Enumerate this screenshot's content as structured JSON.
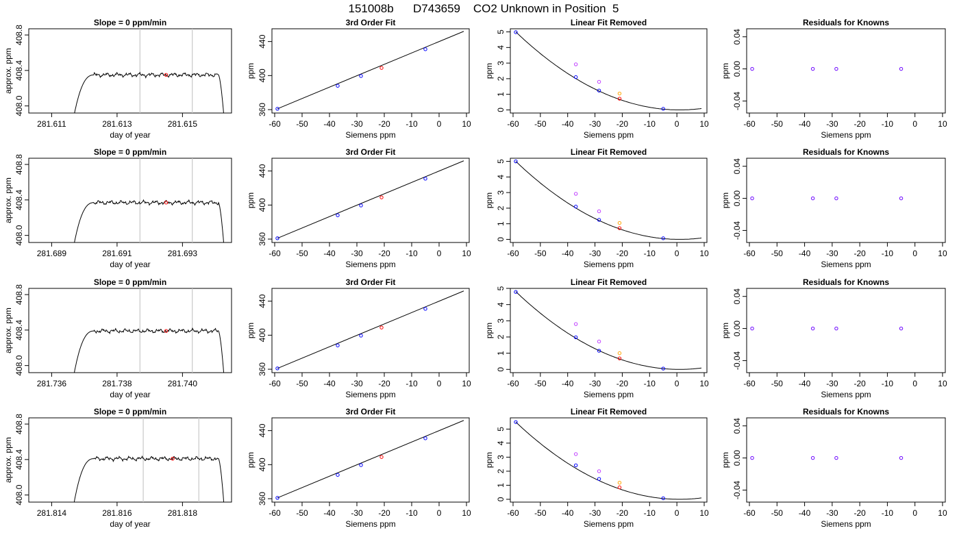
{
  "main_title": "151008b      D743659    CO2 Unknown in Position  5",
  "chart_data": [
    {
      "type": "line",
      "title": "Slope =  0  ppm/min",
      "xlabel": "day of year",
      "ylabel": "approx. ppm",
      "xlim": [
        281.6103,
        281.6165
      ],
      "ylim": [
        407.92,
        408.87
      ],
      "xticks": [
        "281.611",
        "281.613",
        "281.615"
      ],
      "xtick_values": [
        281.611,
        281.613,
        281.615
      ],
      "yticks": [
        "408.0",
        "408.4",
        "408.8"
      ],
      "ytick_values": [
        408.0,
        408.4,
        408.8
      ],
      "vlines": [
        281.6137,
        281.6153
      ],
      "baseline": 408.35,
      "onset": [
        281.6116,
        281.6123
      ],
      "offset": [
        281.6161,
        281.6163
      ],
      "marker": {
        "x": 281.6145,
        "y": 408.35,
        "color": "#ff0000"
      }
    },
    {
      "type": "line",
      "title": "3rd Order Fit",
      "xlabel": "Siemens ppm",
      "ylabel": "ppm",
      "xlim": [
        -61,
        11
      ],
      "ylim": [
        356,
        455
      ],
      "xticks": [
        "-60",
        "-50",
        "-40",
        "-30",
        "-20",
        "-10",
        "0",
        "10"
      ],
      "xtick_values": [
        -60,
        -50,
        -40,
        -30,
        -20,
        -10,
        0,
        10
      ],
      "yticks": [
        "360",
        "400",
        "440"
      ],
      "ytick_values": [
        360,
        400,
        440
      ],
      "line": {
        "x": [
          -59,
          9
        ],
        "y": [
          361,
          452
        ]
      },
      "points": [
        {
          "x": -59,
          "y": 361,
          "color": "#0000ff"
        },
        {
          "x": -37,
          "y": 388,
          "color": "#0000ff"
        },
        {
          "x": -28.5,
          "y": 399.5,
          "color": "#0000ff"
        },
        {
          "x": -21,
          "y": 409,
          "color": "#ff0000"
        },
        {
          "x": -5,
          "y": 431,
          "color": "#0000ff"
        }
      ]
    },
    {
      "type": "scatter",
      "title": "Linear Fit Removed",
      "xlabel": "Siemens ppm",
      "ylabel": "ppm",
      "xlim": [
        -61,
        11
      ],
      "ylim": [
        -0.2,
        5.2
      ],
      "xticks": [
        "-60",
        "-50",
        "-40",
        "-30",
        "-20",
        "-10",
        "0",
        "10"
      ],
      "xtick_values": [
        -60,
        -50,
        -40,
        -30,
        -20,
        -10,
        0,
        10
      ],
      "yticks": [
        "0",
        "1",
        "2",
        "3",
        "4",
        "5"
      ],
      "ytick_values": [
        0,
        1,
        2,
        3,
        4,
        5
      ],
      "curve_peak": 5.0,
      "points": [
        {
          "x": -59,
          "y": 4.98,
          "color": "#0000ff"
        },
        {
          "x": -37,
          "y": 2.1,
          "color": "#0000ff"
        },
        {
          "x": -28.5,
          "y": 1.24,
          "color": "#0000ff"
        },
        {
          "x": -5,
          "y": 0.07,
          "color": "#0000ff"
        },
        {
          "x": -37,
          "y": 2.92,
          "color": "#c040ff"
        },
        {
          "x": -28.5,
          "y": 1.8,
          "color": "#c040ff"
        },
        {
          "x": -21,
          "y": 1.05,
          "color": "#ffa500"
        },
        {
          "x": -21,
          "y": 0.72,
          "color": "#ff0000"
        }
      ]
    },
    {
      "type": "scatter",
      "title": "Residuals for Knowns",
      "xlabel": "Siemens ppm",
      "ylabel": "ppm",
      "xlim": [
        -61,
        11
      ],
      "ylim": [
        -0.055,
        0.05
      ],
      "xticks": [
        "-60",
        "-50",
        "-40",
        "-30",
        "-20",
        "-10",
        "0",
        "10"
      ],
      "xtick_values": [
        -60,
        -50,
        -40,
        -30,
        -20,
        -10,
        0,
        10
      ],
      "yticks": [
        "-0.04",
        "0.00",
        "0.04"
      ],
      "ytick_values": [
        -0.04,
        0.0,
        0.04
      ],
      "points": [
        {
          "x": -59,
          "y": 0.0,
          "color": "#6a00ff"
        },
        {
          "x": -37,
          "y": 0.0,
          "color": "#6a00ff"
        },
        {
          "x": -28.5,
          "y": 0.0,
          "color": "#6a00ff"
        },
        {
          "x": -5,
          "y": 0.0,
          "color": "#6a00ff"
        }
      ]
    },
    {
      "type": "line",
      "title": "Slope =  0  ppm/min",
      "xlabel": "day of year",
      "ylabel": "approx. ppm",
      "xlim": [
        281.6883,
        281.6945
      ],
      "ylim": [
        407.92,
        408.87
      ],
      "xticks": [
        "281.689",
        "281.691",
        "281.693"
      ],
      "xtick_values": [
        281.689,
        281.691,
        281.693
      ],
      "yticks": [
        "408.0",
        "408.4",
        "408.8"
      ],
      "ytick_values": [
        408.0,
        408.4,
        408.8
      ],
      "vlines": [
        281.6917,
        281.6933
      ],
      "baseline": 408.37,
      "onset": [
        281.6896,
        281.6903
      ],
      "offset": [
        281.6941,
        281.6943
      ],
      "marker": {
        "x": 281.6925,
        "y": 408.37,
        "color": "#ff0000"
      }
    },
    {
      "type": "line",
      "title": "3rd Order Fit",
      "xlabel": "Siemens ppm",
      "ylabel": "ppm",
      "xlim": [
        -61,
        11
      ],
      "ylim": [
        356,
        455
      ],
      "xticks": [
        "-60",
        "-50",
        "-40",
        "-30",
        "-20",
        "-10",
        "0",
        "10"
      ],
      "xtick_values": [
        -60,
        -50,
        -40,
        -30,
        -20,
        -10,
        0,
        10
      ],
      "yticks": [
        "360",
        "400",
        "440"
      ],
      "ytick_values": [
        360,
        400,
        440
      ],
      "line": {
        "x": [
          -59,
          9
        ],
        "y": [
          361,
          452
        ]
      },
      "points": [
        {
          "x": -59,
          "y": 361,
          "color": "#0000ff"
        },
        {
          "x": -37,
          "y": 388,
          "color": "#0000ff"
        },
        {
          "x": -28.5,
          "y": 399.5,
          "color": "#0000ff"
        },
        {
          "x": -21,
          "y": 409,
          "color": "#ff0000"
        },
        {
          "x": -5,
          "y": 431,
          "color": "#0000ff"
        }
      ]
    },
    {
      "type": "scatter",
      "title": "Linear Fit Removed",
      "xlabel": "Siemens ppm",
      "ylabel": "ppm",
      "xlim": [
        -61,
        11
      ],
      "ylim": [
        -0.2,
        5.2
      ],
      "xticks": [
        "-60",
        "-50",
        "-40",
        "-30",
        "-20",
        "-10",
        "0",
        "10"
      ],
      "xtick_values": [
        -60,
        -50,
        -40,
        -30,
        -20,
        -10,
        0,
        10
      ],
      "yticks": [
        "0",
        "1",
        "2",
        "3",
        "4",
        "5"
      ],
      "ytick_values": [
        0,
        1,
        2,
        3,
        4,
        5
      ],
      "curve_peak": 5.0,
      "points": [
        {
          "x": -59,
          "y": 5.0,
          "color": "#0000ff"
        },
        {
          "x": -37,
          "y": 2.1,
          "color": "#0000ff"
        },
        {
          "x": -28.5,
          "y": 1.25,
          "color": "#0000ff"
        },
        {
          "x": -5,
          "y": 0.07,
          "color": "#0000ff"
        },
        {
          "x": -37,
          "y": 2.92,
          "color": "#c040ff"
        },
        {
          "x": -28.5,
          "y": 1.8,
          "color": "#c040ff"
        },
        {
          "x": -21,
          "y": 1.05,
          "color": "#ffa500"
        },
        {
          "x": -21,
          "y": 0.72,
          "color": "#ff0000"
        }
      ]
    },
    {
      "type": "scatter",
      "title": "Residuals for Knowns",
      "xlabel": "Siemens ppm",
      "ylabel": "ppm",
      "xlim": [
        -61,
        11
      ],
      "ylim": [
        -0.055,
        0.05
      ],
      "xticks": [
        "-60",
        "-50",
        "-40",
        "-30",
        "-20",
        "-10",
        "0",
        "10"
      ],
      "xtick_values": [
        -60,
        -50,
        -40,
        -30,
        -20,
        -10,
        0,
        10
      ],
      "yticks": [
        "-0.04",
        "0.00",
        "0.04"
      ],
      "ytick_values": [
        -0.04,
        0.0,
        0.04
      ],
      "points": [
        {
          "x": -59,
          "y": 0.0,
          "color": "#6a00ff"
        },
        {
          "x": -37,
          "y": 0.0,
          "color": "#6a00ff"
        },
        {
          "x": -28.5,
          "y": 0.0,
          "color": "#6a00ff"
        },
        {
          "x": -5,
          "y": 0.0,
          "color": "#6a00ff"
        }
      ]
    },
    {
      "type": "line",
      "title": "Slope =  0  ppm/min",
      "xlabel": "day of year",
      "ylabel": "approx. ppm",
      "xlim": [
        281.7353,
        281.7415
      ],
      "ylim": [
        407.92,
        408.87
      ],
      "xticks": [
        "281.736",
        "281.738",
        "281.740"
      ],
      "xtick_values": [
        281.736,
        281.738,
        281.74
      ],
      "yticks": [
        "408.0",
        "408.4",
        "408.8"
      ],
      "ytick_values": [
        408.0,
        408.4,
        408.8
      ],
      "vlines": [
        281.7387,
        281.7403
      ],
      "baseline": 408.39,
      "onset": [
        281.7366,
        281.7373
      ],
      "offset": [
        281.7411,
        281.7413
      ],
      "marker": {
        "x": 281.7395,
        "y": 408.39,
        "color": "#ff0000"
      }
    },
    {
      "type": "line",
      "title": "3rd Order Fit",
      "xlabel": "Siemens ppm",
      "ylabel": "ppm",
      "xlim": [
        -61,
        11
      ],
      "ylim": [
        356,
        455
      ],
      "xticks": [
        "-60",
        "-50",
        "-40",
        "-30",
        "-20",
        "-10",
        "0",
        "10"
      ],
      "xtick_values": [
        -60,
        -50,
        -40,
        -30,
        -20,
        -10,
        0,
        10
      ],
      "yticks": [
        "360",
        "400",
        "440"
      ],
      "ytick_values": [
        360,
        400,
        440
      ],
      "line": {
        "x": [
          -59,
          9
        ],
        "y": [
          361,
          452
        ]
      },
      "points": [
        {
          "x": -59,
          "y": 361,
          "color": "#0000ff"
        },
        {
          "x": -37,
          "y": 388,
          "color": "#0000ff"
        },
        {
          "x": -28.5,
          "y": 399.5,
          "color": "#0000ff"
        },
        {
          "x": -21,
          "y": 409,
          "color": "#ff0000"
        },
        {
          "x": -5,
          "y": 431,
          "color": "#0000ff"
        }
      ]
    },
    {
      "type": "scatter",
      "title": "Linear Fit Removed",
      "xlabel": "Siemens ppm",
      "ylabel": "ppm",
      "xlim": [
        -61,
        11
      ],
      "ylim": [
        -0.2,
        5.0
      ],
      "xticks": [
        "-60",
        "-50",
        "-40",
        "-30",
        "-20",
        "-10",
        "0",
        "10"
      ],
      "xtick_values": [
        -60,
        -50,
        -40,
        -30,
        -20,
        -10,
        0,
        10
      ],
      "yticks": [
        "0",
        "1",
        "2",
        "3",
        "4",
        "5"
      ],
      "ytick_values": [
        0,
        1,
        2,
        3,
        4,
        5
      ],
      "curve_peak": 4.8,
      "points": [
        {
          "x": -59,
          "y": 4.78,
          "color": "#0000ff"
        },
        {
          "x": -37,
          "y": 1.98,
          "color": "#0000ff"
        },
        {
          "x": -28.5,
          "y": 1.15,
          "color": "#0000ff"
        },
        {
          "x": -5,
          "y": 0.05,
          "color": "#0000ff"
        },
        {
          "x": -37,
          "y": 2.8,
          "color": "#c040ff"
        },
        {
          "x": -28.5,
          "y": 1.72,
          "color": "#c040ff"
        },
        {
          "x": -21,
          "y": 1.0,
          "color": "#ffa500"
        },
        {
          "x": -21,
          "y": 0.68,
          "color": "#ff0000"
        }
      ]
    },
    {
      "type": "scatter",
      "title": "Residuals for Knowns",
      "xlabel": "Siemens ppm",
      "ylabel": "ppm",
      "xlim": [
        -61,
        11
      ],
      "ylim": [
        -0.055,
        0.05
      ],
      "xticks": [
        "-60",
        "-50",
        "-40",
        "-30",
        "-20",
        "-10",
        "0",
        "10"
      ],
      "xtick_values": [
        -60,
        -50,
        -40,
        -30,
        -20,
        -10,
        0,
        10
      ],
      "yticks": [
        "-0.04",
        "0.00",
        "0.04"
      ],
      "ytick_values": [
        -0.04,
        0.0,
        0.04
      ],
      "points": [
        {
          "x": -59,
          "y": 0.0,
          "color": "#6a00ff"
        },
        {
          "x": -37,
          "y": 0.0,
          "color": "#6a00ff"
        },
        {
          "x": -28.5,
          "y": 0.0,
          "color": "#6a00ff"
        },
        {
          "x": -5,
          "y": 0.0,
          "color": "#6a00ff"
        }
      ]
    },
    {
      "type": "line",
      "title": "Slope =  0  ppm/min",
      "xlabel": "day of year",
      "ylabel": "approx. ppm",
      "xlim": [
        281.8133,
        281.8195
      ],
      "ylim": [
        407.92,
        408.87
      ],
      "xticks": [
        "281.814",
        "281.816",
        "281.818"
      ],
      "xtick_values": [
        281.814,
        281.816,
        281.818
      ],
      "yticks": [
        "408.0",
        "408.4",
        "408.8"
      ],
      "ytick_values": [
        408.0,
        408.4,
        408.8
      ],
      "vlines": [
        281.8168,
        281.8185
      ],
      "baseline": 408.41,
      "onset": [
        281.8146,
        281.8153
      ],
      "offset": [
        281.8191,
        281.8193
      ],
      "marker": {
        "x": 281.8177,
        "y": 408.41,
        "color": "#ff0000"
      }
    },
    {
      "type": "line",
      "title": "3rd Order Fit",
      "xlabel": "Siemens ppm",
      "ylabel": "ppm",
      "xlim": [
        -61,
        11
      ],
      "ylim": [
        356,
        455
      ],
      "xticks": [
        "-60",
        "-50",
        "-40",
        "-30",
        "-20",
        "-10",
        "0",
        "10"
      ],
      "xtick_values": [
        -60,
        -50,
        -40,
        -30,
        -20,
        -10,
        0,
        10
      ],
      "yticks": [
        "360",
        "400",
        "440"
      ],
      "ytick_values": [
        360,
        400,
        440
      ],
      "line": {
        "x": [
          -59,
          9
        ],
        "y": [
          361,
          452
        ]
      },
      "points": [
        {
          "x": -59,
          "y": 361,
          "color": "#0000ff"
        },
        {
          "x": -37,
          "y": 388,
          "color": "#0000ff"
        },
        {
          "x": -28.5,
          "y": 399.5,
          "color": "#0000ff"
        },
        {
          "x": -21,
          "y": 409,
          "color": "#ff0000"
        },
        {
          "x": -5,
          "y": 431,
          "color": "#0000ff"
        }
      ]
    },
    {
      "type": "scatter",
      "title": "Linear Fit Removed",
      "xlabel": "Siemens ppm",
      "ylabel": "ppm",
      "xlim": [
        -61,
        11
      ],
      "ylim": [
        -0.2,
        5.8
      ],
      "xticks": [
        "-60",
        "-50",
        "-40",
        "-30",
        "-20",
        "-10",
        "0",
        "10"
      ],
      "xtick_values": [
        -60,
        -50,
        -40,
        -30,
        -20,
        -10,
        0,
        10
      ],
      "yticks": [
        "0",
        "1",
        "2",
        "3",
        "4",
        "5"
      ],
      "ytick_values": [
        0,
        1,
        2,
        3,
        4,
        5
      ],
      "curve_peak": 5.5,
      "points": [
        {
          "x": -59,
          "y": 5.5,
          "color": "#0000ff"
        },
        {
          "x": -37,
          "y": 2.42,
          "color": "#0000ff"
        },
        {
          "x": -28.5,
          "y": 1.45,
          "color": "#0000ff"
        },
        {
          "x": -5,
          "y": 0.07,
          "color": "#0000ff"
        },
        {
          "x": -37,
          "y": 3.22,
          "color": "#c040ff"
        },
        {
          "x": -28.5,
          "y": 2.0,
          "color": "#c040ff"
        },
        {
          "x": -21,
          "y": 1.18,
          "color": "#ffa500"
        },
        {
          "x": -21,
          "y": 0.85,
          "color": "#ff0000"
        }
      ]
    },
    {
      "type": "scatter",
      "title": "Residuals for Knowns",
      "xlabel": "Siemens ppm",
      "ylabel": "ppm",
      "xlim": [
        -61,
        11
      ],
      "ylim": [
        -0.055,
        0.05
      ],
      "xticks": [
        "-60",
        "-50",
        "-40",
        "-30",
        "-20",
        "-10",
        "0",
        "10"
      ],
      "xtick_values": [
        -60,
        -50,
        -40,
        -30,
        -20,
        -10,
        0,
        10
      ],
      "yticks": [
        "-0.04",
        "0.00",
        "0.04"
      ],
      "ytick_values": [
        -0.04,
        0.0,
        0.04
      ],
      "points": [
        {
          "x": -59,
          "y": 0.0,
          "color": "#6a00ff"
        },
        {
          "x": -37,
          "y": 0.0,
          "color": "#6a00ff"
        },
        {
          "x": -28.5,
          "y": 0.0,
          "color": "#6a00ff"
        },
        {
          "x": -5,
          "y": 0.0,
          "color": "#6a00ff"
        }
      ]
    }
  ]
}
